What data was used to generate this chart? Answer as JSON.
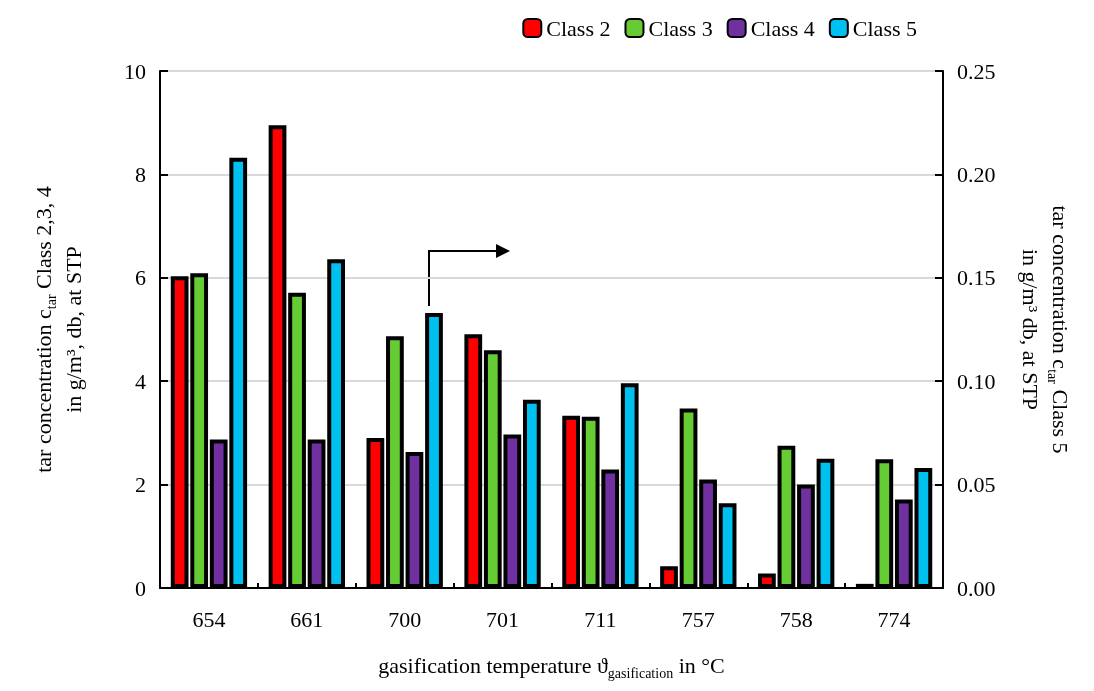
{
  "chart_data": {
    "type": "bar",
    "xlabel": "gasification temperature ϑ$_{gasification}$ in °C",
    "ylabel": "tar concentration c$_{tar}$ Class 2,3, 4\nin g/m³, db, at STP",
    "y2label": "tar concentration c$_{tar}$ Class 5\nin g/m³ db, at STP",
    "categories": [
      "654",
      "661",
      "700",
      "701",
      "711",
      "757",
      "758",
      "774"
    ],
    "series": [
      {
        "name": "Class 2",
        "color": "#ff0000",
        "values": [
          6.03,
          8.95,
          2.9,
          4.91,
          3.33,
          0.42,
          0.28,
          0.08
        ]
      },
      {
        "name": "Class 3",
        "color": "#66cc33",
        "values": [
          6.09,
          5.71,
          4.87,
          4.6,
          3.31,
          3.47,
          2.75,
          2.49
        ]
      },
      {
        "name": "Class 4",
        "color": "#7030a0",
        "values": [
          2.87,
          2.87,
          2.63,
          2.97,
          2.29,
          2.1,
          2.0,
          1.71
        ]
      },
      {
        "name": "Class 5",
        "color": "#00c0f0",
        "axis": "y2",
        "values": [
          0.208,
          0.159,
          0.133,
          0.091,
          0.099,
          0.041,
          0.0625,
          0.058
        ]
      }
    ],
    "ylim": [
      0,
      10
    ],
    "yticks": [
      0,
      2,
      4,
      6,
      8,
      10
    ],
    "y2lim": [
      0,
      0.25
    ],
    "y2ticks": [
      {
        "value": 0,
        "label": "0.00"
      },
      {
        "value": 0.05,
        "label": "0.05"
      },
      {
        "value": 0.1,
        "label": "0.10"
      },
      {
        "value": 0.15,
        "label": "0.15"
      },
      {
        "value": 0.2,
        "label": "0.20"
      },
      {
        "value": 0.25,
        "label": "0.25"
      }
    ],
    "grid": "y",
    "legend": "top right"
  }
}
